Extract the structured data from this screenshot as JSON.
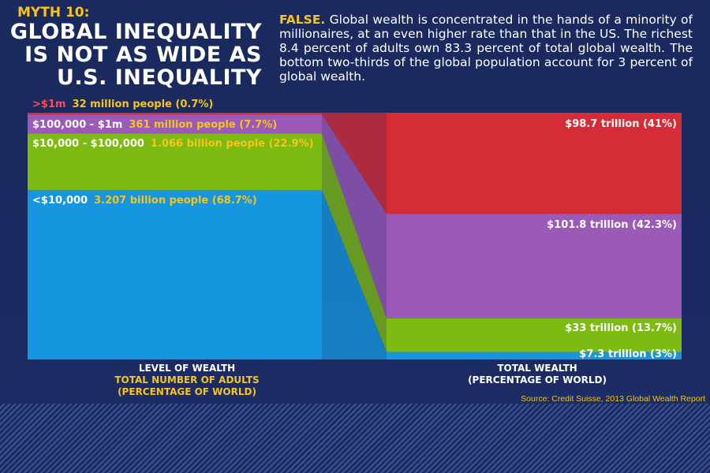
{
  "header": {
    "myth_label": "MYTH 10:",
    "headline_lines": [
      "GLOBAL INEQUALITY",
      "IS NOT AS WIDE AS",
      "U.S. INEQUALITY"
    ],
    "verdict": "FALSE.",
    "description": "Global wealth is concentrated in the hands of a minority of millionaires, at an even higher rate than that in the US. The richest 8.4 percent of adults own 83.3 percent of total global wealth. The bottom two-thirds of the global population account for 3 percent of global wealth."
  },
  "axes": {
    "left_title_lines": [
      "LEVEL OF WEALTH",
      "TOTAL NUMBER OF ADULTS",
      "(PERCENTAGE OF WORLD)"
    ],
    "right_title_lines": [
      "TOTAL WEALTH",
      "(PERCENTAGE OF WORLD)"
    ]
  },
  "source": "Source: Credit Suisse, 2013 Global Wealth Report",
  "colors": {
    "tier_1m_plus": "#d62c37",
    "tier_100k_1m": "#9b59b8",
    "tier_10k_100k": "#7dba12",
    "tier_under_10k": "#1596de",
    "label_yellow": "#f7c41e",
    "label_red": "#ff4a55",
    "label_white": "#ffffff"
  },
  "chart_data": {
    "type": "bar",
    "categories": [
      ">$1m",
      "$100,000 - $1m",
      "$10,000 - $100,000",
      "<$10,000"
    ],
    "series": [
      {
        "name": "TOTAL NUMBER OF ADULTS",
        "values": [
          0.7,
          7.7,
          22.9,
          68.7
        ],
        "value_labels": [
          "32 million people (0.7%)",
          "361 million people (7.7%)",
          "1.066 billion people (22.9%)",
          "3.207 billion people (68.7%)"
        ]
      },
      {
        "name": "TOTAL WEALTH",
        "values": [
          41,
          42.3,
          13.7,
          3
        ],
        "value_labels": [
          "$98.7 trillion (41%)",
          "$101.8 trillion (42.3%)",
          "$33 trillion (13.7%)",
          "$7.3 trillion (3%)"
        ]
      }
    ],
    "ylim": [
      0,
      100
    ],
    "stacked": true
  }
}
